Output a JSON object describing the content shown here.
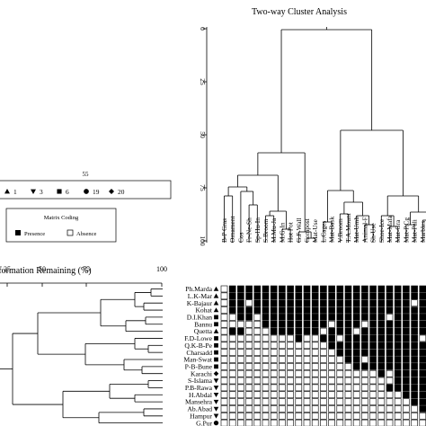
{
  "chart_data": {
    "type": "heatmap",
    "title": "Two-way Cluster Analysis",
    "top_axis": {
      "ticks": [
        "0",
        "25",
        "50",
        "75",
        "100"
      ]
    },
    "left_axis": {
      "label": "Information Remaining (%)",
      "ticks": [
        "25",
        "50",
        "75",
        "100"
      ]
    },
    "group_legend": {
      "title": "55",
      "entries": [
        {
          "symbol": "triangle-up",
          "label": "1"
        },
        {
          "symbol": "triangle-down",
          "label": "3"
        },
        {
          "symbol": "square",
          "label": "6"
        },
        {
          "symbol": "circle",
          "label": "19"
        },
        {
          "symbol": "diamond",
          "label": "20"
        }
      ]
    },
    "matrix_legend": {
      "title": "Matrix Coding",
      "presence": "Presence",
      "absence": "Absence"
    },
    "columns": [
      "B-P Gras",
      "Ornament",
      "Cos",
      "Fr-Ne-Sh",
      "Sp-Hu-In",
      "S.Broom",
      "M.Mu-Ja",
      "M.G-In",
      "Hot Pot",
      "G.F-Wall",
      "Compost",
      "Mat-Use",
      "L.Cages",
      "Mat-Bask",
      "V.Broom",
      "T.A.Mount",
      "Mat-Umb",
      "Animal-F",
      "Sh-Use",
      "Shoe-Ice",
      "Mat-Mafa",
      "Mat-Gra",
      "Mat-P.Cg",
      "Mat-Pali",
      "Marbles",
      "Mat-Cot"
    ],
    "rows": [
      {
        "name": "Ph.Marda",
        "symbol": "triangle-up"
      },
      {
        "name": "L.K-Mar",
        "symbol": "triangle-up"
      },
      {
        "name": "K-Bajaur",
        "symbol": "triangle-up"
      },
      {
        "name": "Kohat",
        "symbol": "triangle-up"
      },
      {
        "name": "D.I.Khan",
        "symbol": "square"
      },
      {
        "name": "Bannu",
        "symbol": "square"
      },
      {
        "name": "Quetta",
        "symbol": "triangle-up"
      },
      {
        "name": "F.D-Lowe",
        "symbol": "square"
      },
      {
        "name": "Q.K-B-Pe",
        "symbol": "square"
      },
      {
        "name": "Charsadd",
        "symbol": "square"
      },
      {
        "name": "Man-Swat",
        "symbol": "square"
      },
      {
        "name": "P-B-Bune",
        "symbol": "square"
      },
      {
        "name": "Karachi",
        "symbol": "diamond"
      },
      {
        "name": "S-Islama",
        "symbol": "triangle-down"
      },
      {
        "name": "P.B-Rawa",
        "symbol": "triangle-down"
      },
      {
        "name": "H.Abdal",
        "symbol": "triangle-down"
      },
      {
        "name": "Mansehra",
        "symbol": "triangle-down"
      },
      {
        "name": "Ab.Abad",
        "symbol": "triangle-down"
      },
      {
        "name": "Hampur",
        "symbol": "triangle-down"
      },
      {
        "name": "G.Pur",
        "symbol": "circle"
      }
    ],
    "matrix": [
      [
        0,
        1,
        1,
        1,
        1,
        1,
        1,
        1,
        1,
        1,
        1,
        1,
        1,
        1,
        1,
        1,
        1,
        1,
        1,
        1,
        1,
        1,
        1,
        1,
        1,
        1
      ],
      [
        0,
        1,
        1,
        1,
        1,
        1,
        1,
        1,
        1,
        1,
        1,
        1,
        1,
        1,
        1,
        1,
        1,
        1,
        1,
        1,
        1,
        1,
        1,
        1,
        1,
        1
      ],
      [
        0,
        1,
        1,
        0,
        1,
        1,
        1,
        1,
        1,
        1,
        1,
        1,
        1,
        1,
        1,
        1,
        1,
        1,
        1,
        1,
        1,
        1,
        1,
        0,
        1,
        1
      ],
      [
        0,
        1,
        1,
        1,
        1,
        1,
        1,
        1,
        1,
        1,
        1,
        1,
        1,
        1,
        1,
        1,
        1,
        1,
        1,
        1,
        1,
        1,
        1,
        1,
        1,
        1
      ],
      [
        0,
        0,
        1,
        1,
        0,
        1,
        1,
        1,
        1,
        1,
        1,
        1,
        1,
        1,
        1,
        1,
        1,
        1,
        1,
        1,
        0,
        1,
        1,
        1,
        1,
        1
      ],
      [
        0,
        0,
        0,
        0,
        0,
        1,
        1,
        1,
        1,
        1,
        1,
        1,
        1,
        0,
        1,
        1,
        1,
        0,
        1,
        1,
        1,
        1,
        1,
        1,
        1,
        1
      ],
      [
        0,
        1,
        1,
        0,
        0,
        0,
        1,
        1,
        1,
        1,
        1,
        1,
        0,
        1,
        1,
        1,
        0,
        1,
        1,
        1,
        1,
        1,
        1,
        1,
        1,
        1
      ],
      [
        0,
        0,
        0,
        0,
        0,
        0,
        0,
        0,
        0,
        1,
        0,
        0,
        1,
        1,
        0,
        1,
        1,
        1,
        1,
        1,
        1,
        1,
        1,
        1,
        0,
        1
      ],
      [
        0,
        0,
        0,
        0,
        0,
        0,
        0,
        0,
        0,
        0,
        0,
        0,
        0,
        1,
        1,
        1,
        1,
        1,
        1,
        1,
        1,
        1,
        1,
        1,
        1,
        1
      ],
      [
        0,
        0,
        0,
        0,
        0,
        0,
        0,
        0,
        0,
        0,
        0,
        0,
        0,
        0,
        1,
        1,
        1,
        1,
        1,
        1,
        1,
        1,
        1,
        1,
        1,
        1
      ],
      [
        0,
        0,
        0,
        0,
        0,
        0,
        0,
        0,
        0,
        0,
        0,
        0,
        0,
        0,
        0,
        1,
        1,
        0,
        1,
        1,
        1,
        1,
        1,
        1,
        1,
        1
      ],
      [
        0,
        0,
        0,
        0,
        0,
        0,
        0,
        0,
        0,
        0,
        0,
        0,
        0,
        0,
        0,
        0,
        1,
        1,
        1,
        1,
        1,
        1,
        1,
        1,
        1,
        1
      ],
      [
        0,
        0,
        0,
        0,
        0,
        0,
        0,
        0,
        0,
        0,
        0,
        0,
        0,
        0,
        0,
        0,
        0,
        0,
        0,
        1,
        0,
        1,
        1,
        1,
        1,
        1
      ],
      [
        0,
        0,
        0,
        0,
        0,
        0,
        0,
        0,
        0,
        0,
        0,
        0,
        0,
        0,
        0,
        0,
        0,
        0,
        0,
        0,
        0,
        1,
        1,
        1,
        1,
        1
      ],
      [
        0,
        0,
        0,
        0,
        0,
        0,
        0,
        0,
        0,
        0,
        0,
        0,
        0,
        0,
        0,
        0,
        0,
        0,
        0,
        0,
        1,
        1,
        1,
        1,
        1,
        1
      ],
      [
        0,
        0,
        0,
        0,
        0,
        0,
        0,
        0,
        0,
        0,
        0,
        0,
        0,
        0,
        0,
        0,
        0,
        0,
        0,
        0,
        0,
        0,
        1,
        1,
        1,
        1
      ],
      [
        0,
        0,
        0,
        0,
        0,
        0,
        0,
        0,
        0,
        0,
        0,
        0,
        0,
        0,
        0,
        0,
        0,
        0,
        0,
        0,
        0,
        0,
        0,
        1,
        1,
        1
      ],
      [
        0,
        0,
        0,
        0,
        0,
        0,
        0,
        0,
        0,
        0,
        0,
        0,
        0,
        0,
        0,
        0,
        0,
        0,
        0,
        0,
        0,
        0,
        0,
        0,
        1,
        1
      ],
      [
        0,
        0,
        0,
        0,
        0,
        0,
        0,
        0,
        0,
        0,
        0,
        0,
        0,
        0,
        0,
        0,
        0,
        0,
        0,
        0,
        0,
        0,
        0,
        0,
        0,
        1
      ],
      [
        0,
        0,
        0,
        0,
        0,
        0,
        0,
        0,
        0,
        0,
        0,
        0,
        0,
        0,
        0,
        0,
        0,
        0,
        0,
        0,
        0,
        0,
        0,
        0,
        0,
        1
      ]
    ],
    "colors": {
      "presence": "#000000",
      "absence": "#ffffff",
      "line": "#000000"
    }
  }
}
